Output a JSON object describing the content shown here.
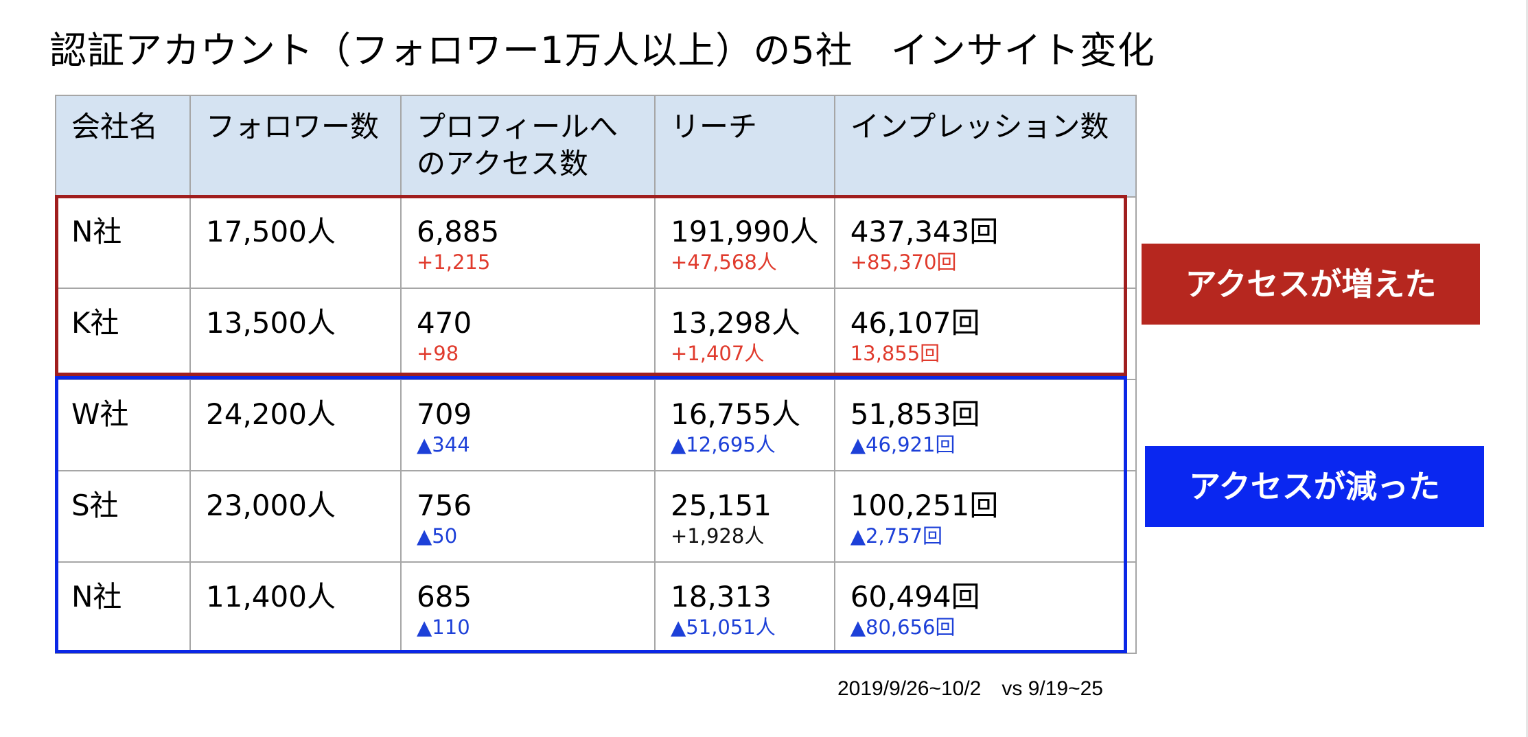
{
  "title": "認証アカウント（フォロワー1万人以上）の5社　インサイト変化",
  "table": {
    "headers": [
      "会社名",
      "フォロワー数",
      "プロフィールへのアクセス数",
      "リーチ",
      "インプレッション数"
    ],
    "rows": [
      {
        "company": "N社",
        "followers": "17,500人",
        "profile_access": "6,885",
        "profile_access_change": "+1,215",
        "reach": "191,990人",
        "reach_change": "+47,568人",
        "impressions": "437,343回",
        "impressions_change": "+85,370回"
      },
      {
        "company": "K社",
        "followers": "13,500人",
        "profile_access": "470",
        "profile_access_change": "+98",
        "reach": "13,298人",
        "reach_change": "+1,407人",
        "impressions": "46,107回",
        "impressions_change": "13,855回"
      },
      {
        "company": "W社",
        "followers": "24,200人",
        "profile_access": "709",
        "profile_access_change": "▲344",
        "reach": "16,755人",
        "reach_change": "▲12,695人",
        "impressions": "51,853回",
        "impressions_change": "▲46,921回"
      },
      {
        "company": "S社",
        "followers": "23,000人",
        "profile_access": "756",
        "profile_access_change": "▲50",
        "reach": "25,151",
        "reach_change": "+1,928人",
        "impressions": "100,251回",
        "impressions_change": "▲2,757回"
      },
      {
        "company": "N社",
        "followers": "11,400人",
        "profile_access": "685",
        "profile_access_change": "▲110",
        "reach": "18,313",
        "reach_change": "▲51,051人",
        "impressions": "60,494回",
        "impressions_change": "▲80,656回"
      }
    ]
  },
  "labels": {
    "increased": "アクセスが増えた",
    "decreased": "アクセスが減った"
  },
  "footnote": "2019/9/26~10/2　vs 9/19~25",
  "colors": {
    "header_bg": "#d5e3f2",
    "increase_text": "#e03a2c",
    "decrease_text": "#1d40d8",
    "increase_frame": "#a01e1e",
    "decrease_frame": "#0a27e6",
    "increase_label_bg": "#b6271f",
    "decrease_label_bg": "#0a27f0"
  }
}
